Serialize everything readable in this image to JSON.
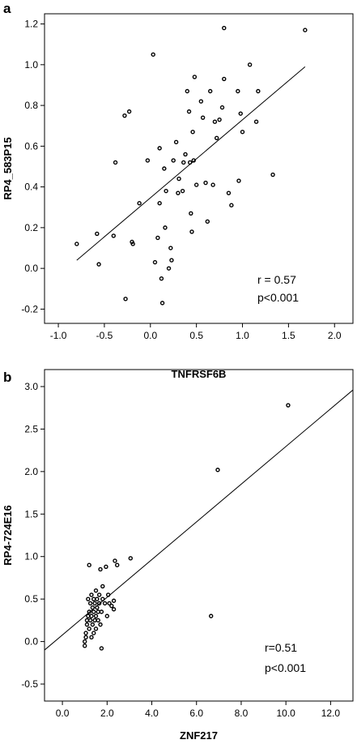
{
  "chart_data": [
    {
      "panel": "a",
      "type": "scatter",
      "title": "",
      "xlabel": "TNFRSF6B",
      "ylabel": "RP4_583P15",
      "xlim": [
        -1.15,
        2.2
      ],
      "ylim": [
        -0.27,
        1.25
      ],
      "xticks": [
        -1.0,
        -0.5,
        0.0,
        0.5,
        1.0,
        1.5,
        2.0
      ],
      "xtick_labels": [
        "-1.0",
        "-0.5",
        "0.0",
        "0.5",
        "1.0",
        "1.5",
        "2.0"
      ],
      "yticks": [
        -0.2,
        0.0,
        0.2,
        0.4,
        0.6,
        0.8,
        1.0,
        1.2
      ],
      "ytick_labels": [
        "-0.2",
        "0.0",
        "0.2",
        "0.4",
        "0.6",
        "0.8",
        "1.0",
        "1.2"
      ],
      "grid": false,
      "annotations": [
        "r = 0.57",
        "p<0.001"
      ],
      "fit_line": {
        "x": [
          -0.8,
          1.68
        ],
        "y": [
          0.04,
          0.99
        ]
      },
      "points": [
        [
          -0.8,
          0.12
        ],
        [
          -0.58,
          0.17
        ],
        [
          -0.56,
          0.02
        ],
        [
          -0.4,
          0.16
        ],
        [
          -0.38,
          0.52
        ],
        [
          -0.28,
          0.75
        ],
        [
          -0.27,
          -0.15
        ],
        [
          -0.23,
          0.77
        ],
        [
          -0.2,
          0.13
        ],
        [
          -0.19,
          0.12
        ],
        [
          -0.12,
          0.32
        ],
        [
          -0.03,
          0.53
        ],
        [
          0.03,
          1.05
        ],
        [
          0.05,
          0.03
        ],
        [
          0.08,
          0.15
        ],
        [
          0.1,
          0.32
        ],
        [
          0.1,
          0.59
        ],
        [
          0.12,
          -0.05
        ],
        [
          0.13,
          -0.17
        ],
        [
          0.15,
          0.49
        ],
        [
          0.16,
          0.2
        ],
        [
          0.17,
          0.38
        ],
        [
          0.2,
          0.0
        ],
        [
          0.22,
          0.1
        ],
        [
          0.23,
          0.04
        ],
        [
          0.25,
          0.53
        ],
        [
          0.28,
          0.62
        ],
        [
          0.3,
          0.37
        ],
        [
          0.31,
          0.44
        ],
        [
          0.35,
          0.38
        ],
        [
          0.36,
          0.52
        ],
        [
          0.38,
          0.56
        ],
        [
          0.4,
          0.87
        ],
        [
          0.42,
          0.77
        ],
        [
          0.43,
          0.52
        ],
        [
          0.44,
          0.27
        ],
        [
          0.45,
          0.18
        ],
        [
          0.46,
          0.67
        ],
        [
          0.47,
          0.53
        ],
        [
          0.48,
          0.94
        ],
        [
          0.5,
          0.41
        ],
        [
          0.55,
          0.82
        ],
        [
          0.57,
          0.74
        ],
        [
          0.6,
          0.42
        ],
        [
          0.62,
          0.23
        ],
        [
          0.65,
          0.87
        ],
        [
          0.68,
          0.41
        ],
        [
          0.7,
          0.72
        ],
        [
          0.72,
          0.64
        ],
        [
          0.75,
          0.73
        ],
        [
          0.78,
          0.79
        ],
        [
          0.8,
          0.93
        ],
        [
          0.8,
          1.18
        ],
        [
          0.85,
          0.37
        ],
        [
          0.88,
          0.31
        ],
        [
          0.95,
          0.87
        ],
        [
          0.96,
          0.43
        ],
        [
          0.98,
          0.76
        ],
        [
          1.0,
          0.67
        ],
        [
          1.08,
          1.0
        ],
        [
          1.15,
          0.72
        ],
        [
          1.17,
          0.87
        ],
        [
          1.33,
          0.46
        ],
        [
          1.68,
          1.17
        ]
      ]
    },
    {
      "panel": "b",
      "type": "scatter",
      "title": "",
      "xlabel": "ZNF217",
      "ylabel": "RP4-724E16",
      "xlim": [
        -0.8,
        13.0
      ],
      "ylim": [
        -0.7,
        3.2
      ],
      "xticks": [
        0.0,
        2.0,
        4.0,
        6.0,
        8.0,
        10.0,
        12.0
      ],
      "xtick_labels": [
        "0.0",
        "2.0",
        "4.0",
        "6.0",
        "8.0",
        "10.0",
        "12.0"
      ],
      "yticks": [
        -0.5,
        0.0,
        0.5,
        1.0,
        1.5,
        2.0,
        2.5,
        3.0
      ],
      "ytick_labels": [
        "-0.5",
        "0.0",
        "0.5",
        "1.0",
        "1.5",
        "2.0",
        "2.5",
        "3.0"
      ],
      "grid": false,
      "annotations": [
        "r=0.51",
        "p<0.001"
      ],
      "fit_line": {
        "x": [
          -0.8,
          13.0
        ],
        "y": [
          -0.1,
          2.96
        ]
      },
      "points": [
        [
          1.0,
          0.0
        ],
        [
          1.0,
          -0.05
        ],
        [
          1.05,
          0.05
        ],
        [
          1.05,
          0.1
        ],
        [
          1.1,
          0.2
        ],
        [
          1.1,
          0.25
        ],
        [
          1.15,
          0.3
        ],
        [
          1.15,
          0.5
        ],
        [
          1.2,
          0.15
        ],
        [
          1.2,
          0.35
        ],
        [
          1.2,
          0.9
        ],
        [
          1.25,
          0.25
        ],
        [
          1.25,
          0.45
        ],
        [
          1.3,
          0.05
        ],
        [
          1.3,
          0.3
        ],
        [
          1.3,
          0.55
        ],
        [
          1.35,
          0.2
        ],
        [
          1.35,
          0.4
        ],
        [
          1.4,
          0.1
        ],
        [
          1.4,
          0.35
        ],
        [
          1.4,
          0.5
        ],
        [
          1.45,
          0.25
        ],
        [
          1.45,
          0.45
        ],
        [
          1.5,
          0.15
        ],
        [
          1.5,
          0.3
        ],
        [
          1.5,
          0.6
        ],
        [
          1.55,
          0.4
        ],
        [
          1.55,
          0.5
        ],
        [
          1.6,
          0.25
        ],
        [
          1.6,
          0.35
        ],
        [
          1.65,
          0.45
        ],
        [
          1.65,
          0.55
        ],
        [
          1.7,
          0.2
        ],
        [
          1.7,
          0.85
        ],
        [
          1.75,
          0.35
        ],
        [
          1.75,
          -0.08
        ],
        [
          1.8,
          0.5
        ],
        [
          1.8,
          0.65
        ],
        [
          1.9,
          0.45
        ],
        [
          1.95,
          0.88
        ],
        [
          2.0,
          0.3
        ],
        [
          2.05,
          0.55
        ],
        [
          2.1,
          0.45
        ],
        [
          2.2,
          0.42
        ],
        [
          2.3,
          0.38
        ],
        [
          2.3,
          0.48
        ],
        [
          2.35,
          0.95
        ],
        [
          2.45,
          0.9
        ],
        [
          3.05,
          0.98
        ],
        [
          6.65,
          0.3
        ],
        [
          6.95,
          2.02
        ],
        [
          10.1,
          2.78
        ]
      ]
    }
  ]
}
